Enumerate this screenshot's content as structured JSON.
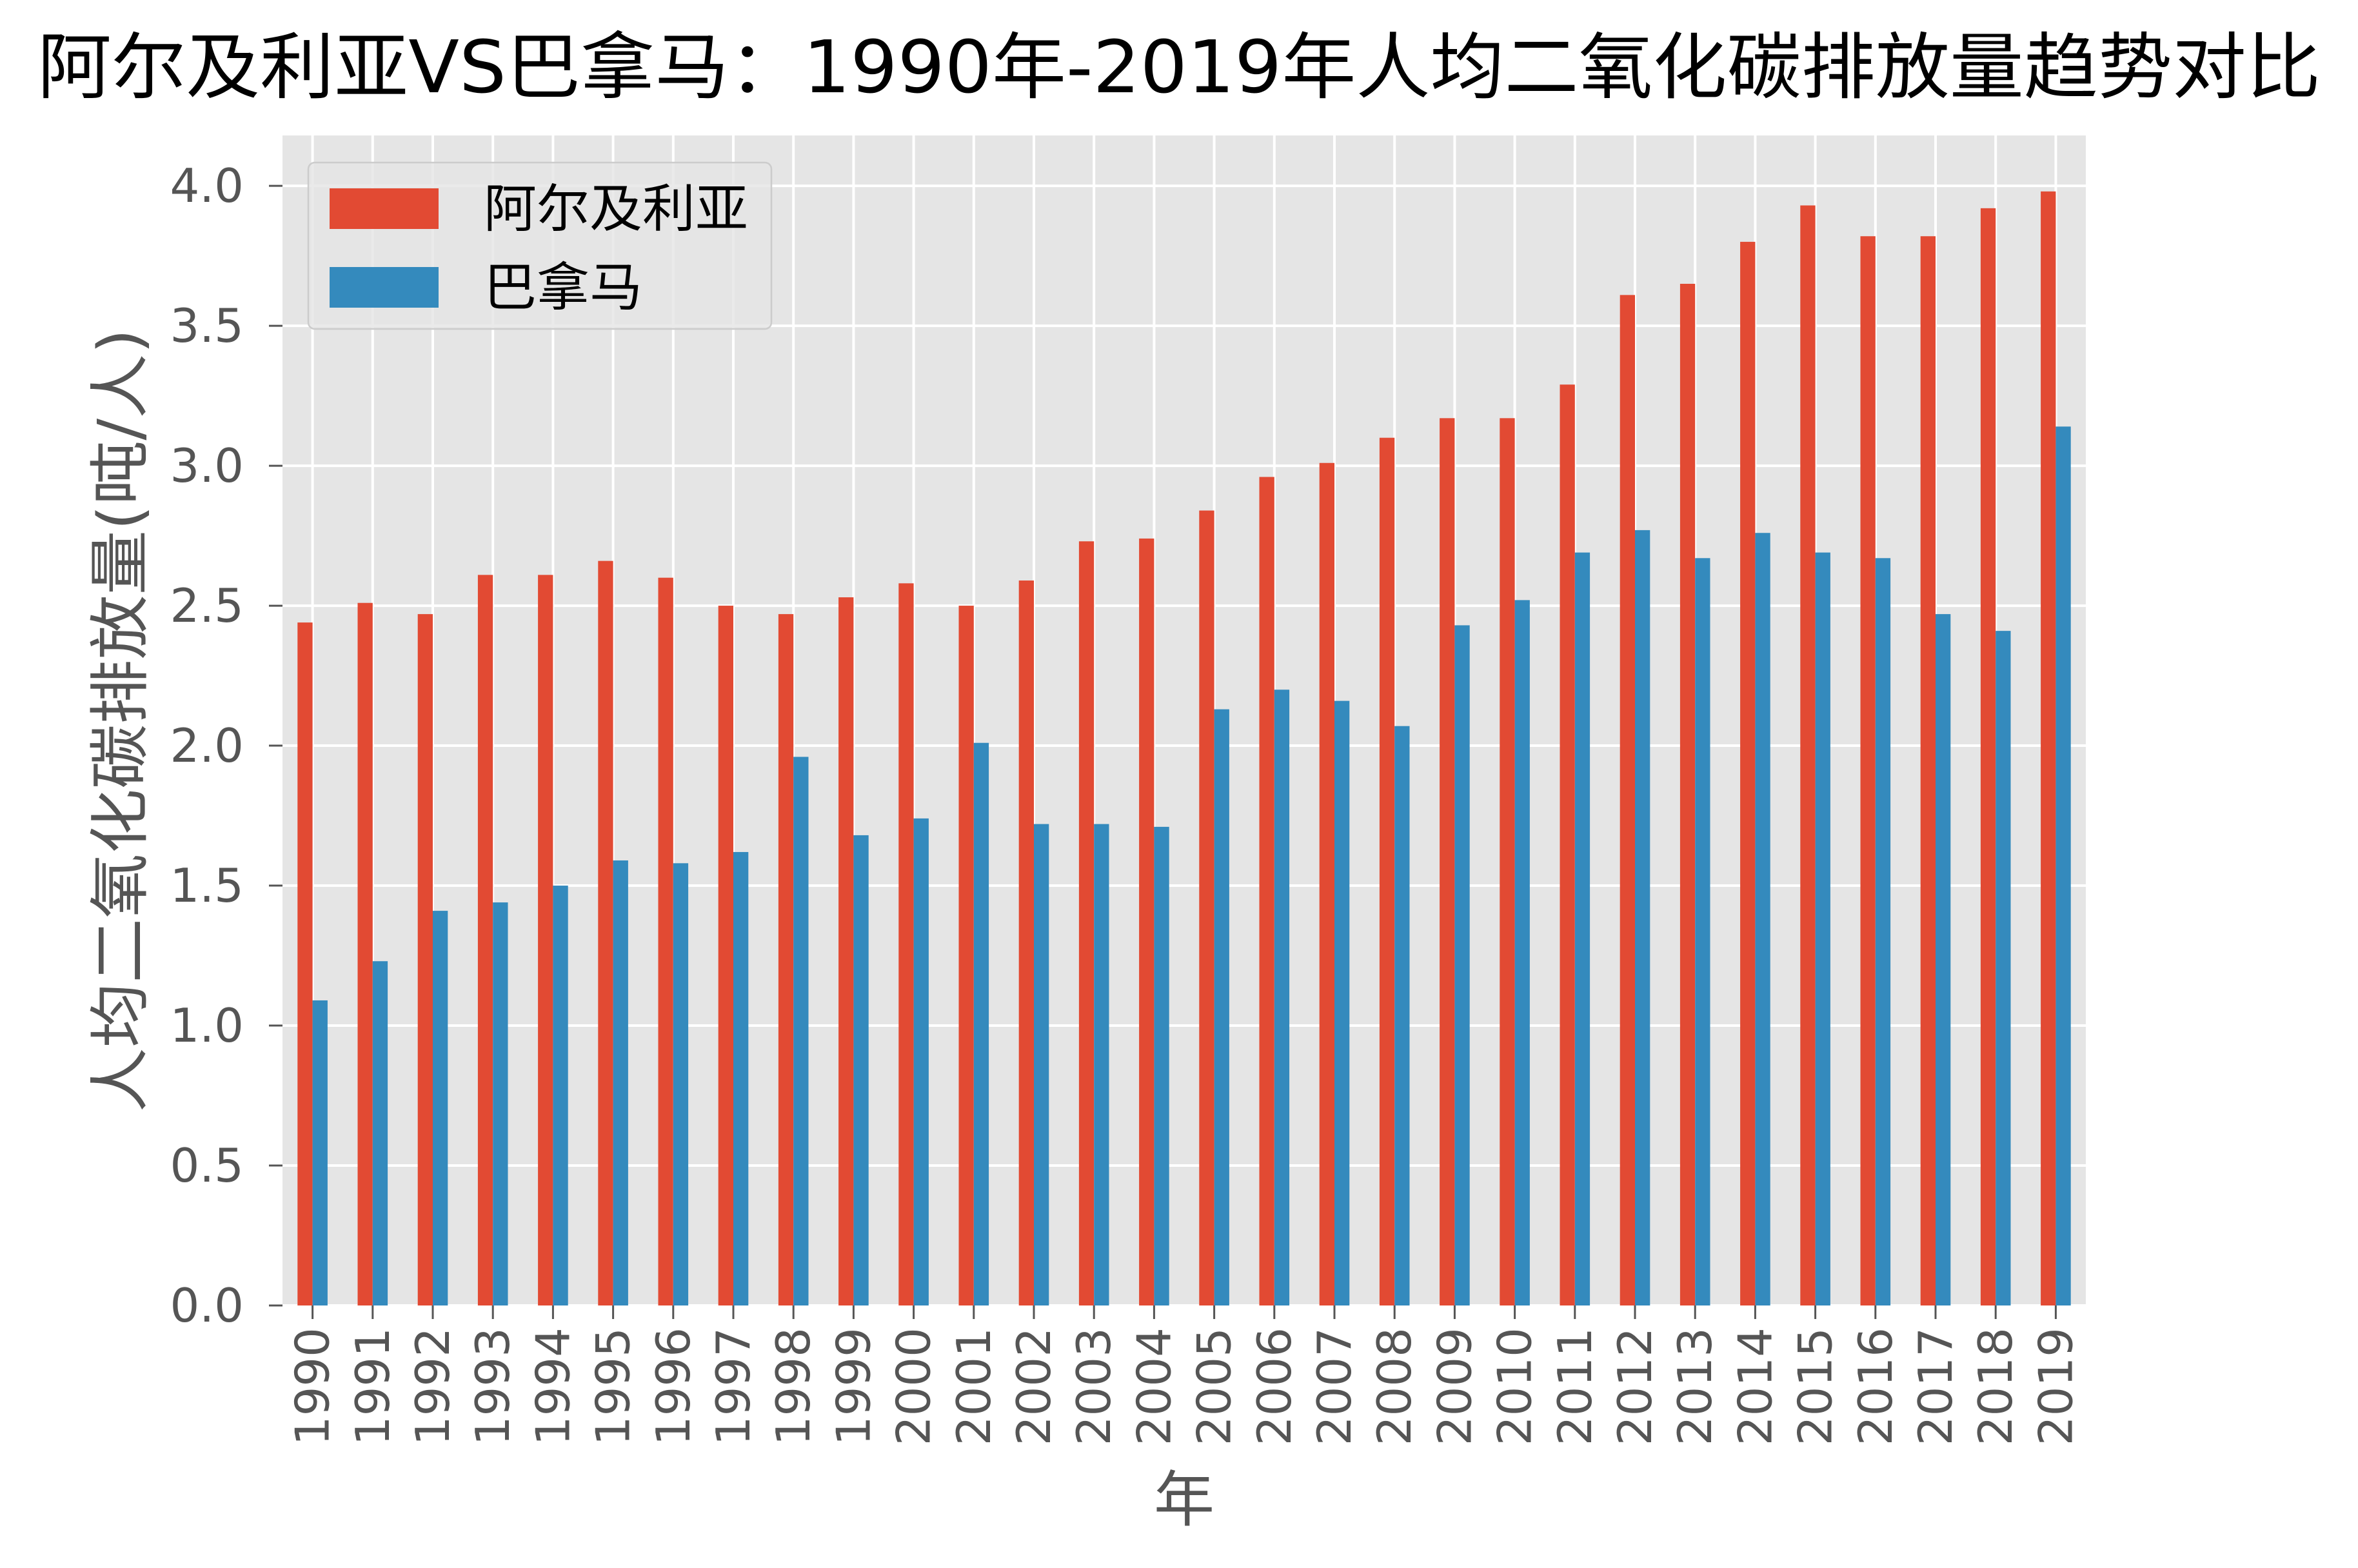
{
  "chart_data": {
    "type": "bar",
    "title": "阿尔及利亚VS巴拿马：1990年-2019年人均二氧化碳排放量趋势对比",
    "xlabel": "年",
    "ylabel": "人均二氧化碳排放量(吨/人)",
    "categories": [
      "1990",
      "1991",
      "1992",
      "1993",
      "1994",
      "1995",
      "1996",
      "1997",
      "1998",
      "1999",
      "2000",
      "2001",
      "2002",
      "2003",
      "2004",
      "2005",
      "2006",
      "2007",
      "2008",
      "2009",
      "2010",
      "2011",
      "2012",
      "2013",
      "2014",
      "2015",
      "2016",
      "2017",
      "2018",
      "2019"
    ],
    "series": [
      {
        "name": "阿尔及利亚",
        "color": "#E24A33",
        "values": [
          2.44,
          2.51,
          2.47,
          2.61,
          2.61,
          2.66,
          2.6,
          2.5,
          2.47,
          2.53,
          2.58,
          2.5,
          2.59,
          2.73,
          2.74,
          2.84,
          2.96,
          3.01,
          3.1,
          3.17,
          3.17,
          3.29,
          3.61,
          3.65,
          3.8,
          3.93,
          3.82,
          3.82,
          3.92,
          3.98
        ]
      },
      {
        "name": "巴拿马",
        "color": "#348ABD",
        "values": [
          1.09,
          1.23,
          1.41,
          1.44,
          1.5,
          1.59,
          1.58,
          1.62,
          1.96,
          1.68,
          1.74,
          2.01,
          1.72,
          1.72,
          1.71,
          2.13,
          2.2,
          2.16,
          2.07,
          2.43,
          2.52,
          2.69,
          2.77,
          2.67,
          2.76,
          2.69,
          2.67,
          2.47,
          2.41,
          3.14
        ]
      }
    ],
    "ylim": [
      0,
      4.18
    ],
    "yticks": [
      "0.0",
      "0.5",
      "1.0",
      "1.5",
      "2.0",
      "2.5",
      "3.0",
      "3.5",
      "4.0"
    ],
    "grid": true,
    "legend_position": "top-left",
    "background": "#E5E5E5"
  }
}
